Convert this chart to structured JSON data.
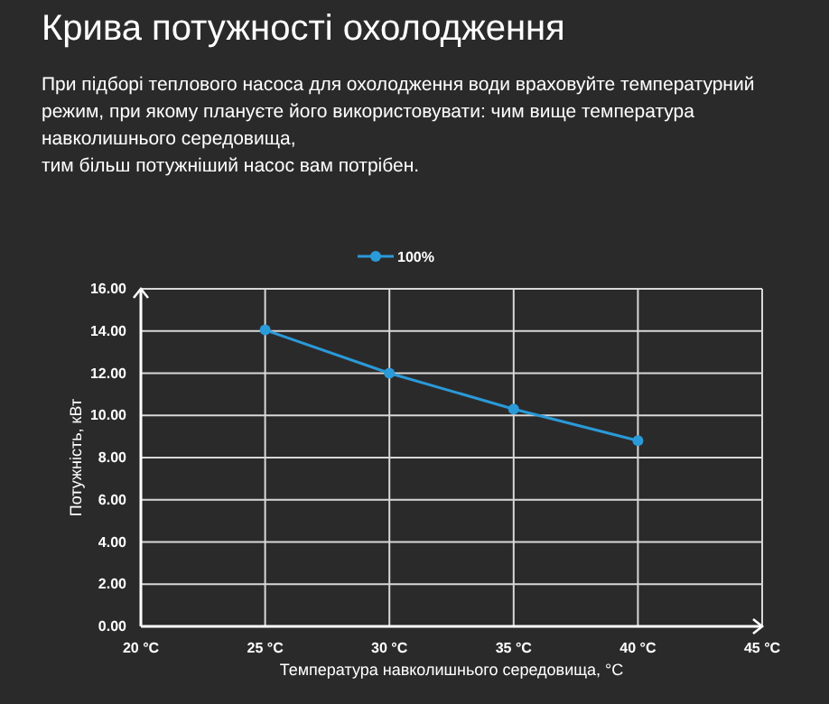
{
  "chart_data": {
    "type": "line",
    "title": "Крива потужності охолодження",
    "subtitle": "При підборі теплового насоса для охолодження води враховуйте температурний режим, при якому плануєте його використовувати: чим вище температура навколишнього середовища,\nтим більш потужніший насос вам потрібен.",
    "xlabel": "Температура навколишнього середовища, °C",
    "ylabel": "Потужність, кВт",
    "x": [
      25,
      30,
      35,
      40
    ],
    "series": [
      {
        "name": "100%",
        "color": "#2a9ad8",
        "values": [
          14.05,
          12.0,
          10.3,
          8.8
        ]
      }
    ],
    "xlim": [
      20,
      45
    ],
    "xticks": [
      {
        "value": 20,
        "label": "20 °C"
      },
      {
        "value": 25,
        "label": "25 °C"
      },
      {
        "value": 30,
        "label": "30 °C"
      },
      {
        "value": 35,
        "label": "35 °C"
      },
      {
        "value": 40,
        "label": "40 °C"
      },
      {
        "value": 45,
        "label": "45 °C"
      }
    ],
    "ylim": [
      0,
      16
    ],
    "yticks": [
      {
        "value": 0,
        "label": "0.00"
      },
      {
        "value": 2,
        "label": "2.00"
      },
      {
        "value": 4,
        "label": "4.00"
      },
      {
        "value": 6,
        "label": "6.00"
      },
      {
        "value": 8,
        "label": "8.00"
      },
      {
        "value": 10,
        "label": "10.00"
      },
      {
        "value": 12,
        "label": "12.00"
      },
      {
        "value": 14,
        "label": "14.00"
      },
      {
        "value": 16,
        "label": "16.00"
      }
    ],
    "grid": true,
    "legend": "top",
    "marker": "circle",
    "line_style": "solid"
  }
}
